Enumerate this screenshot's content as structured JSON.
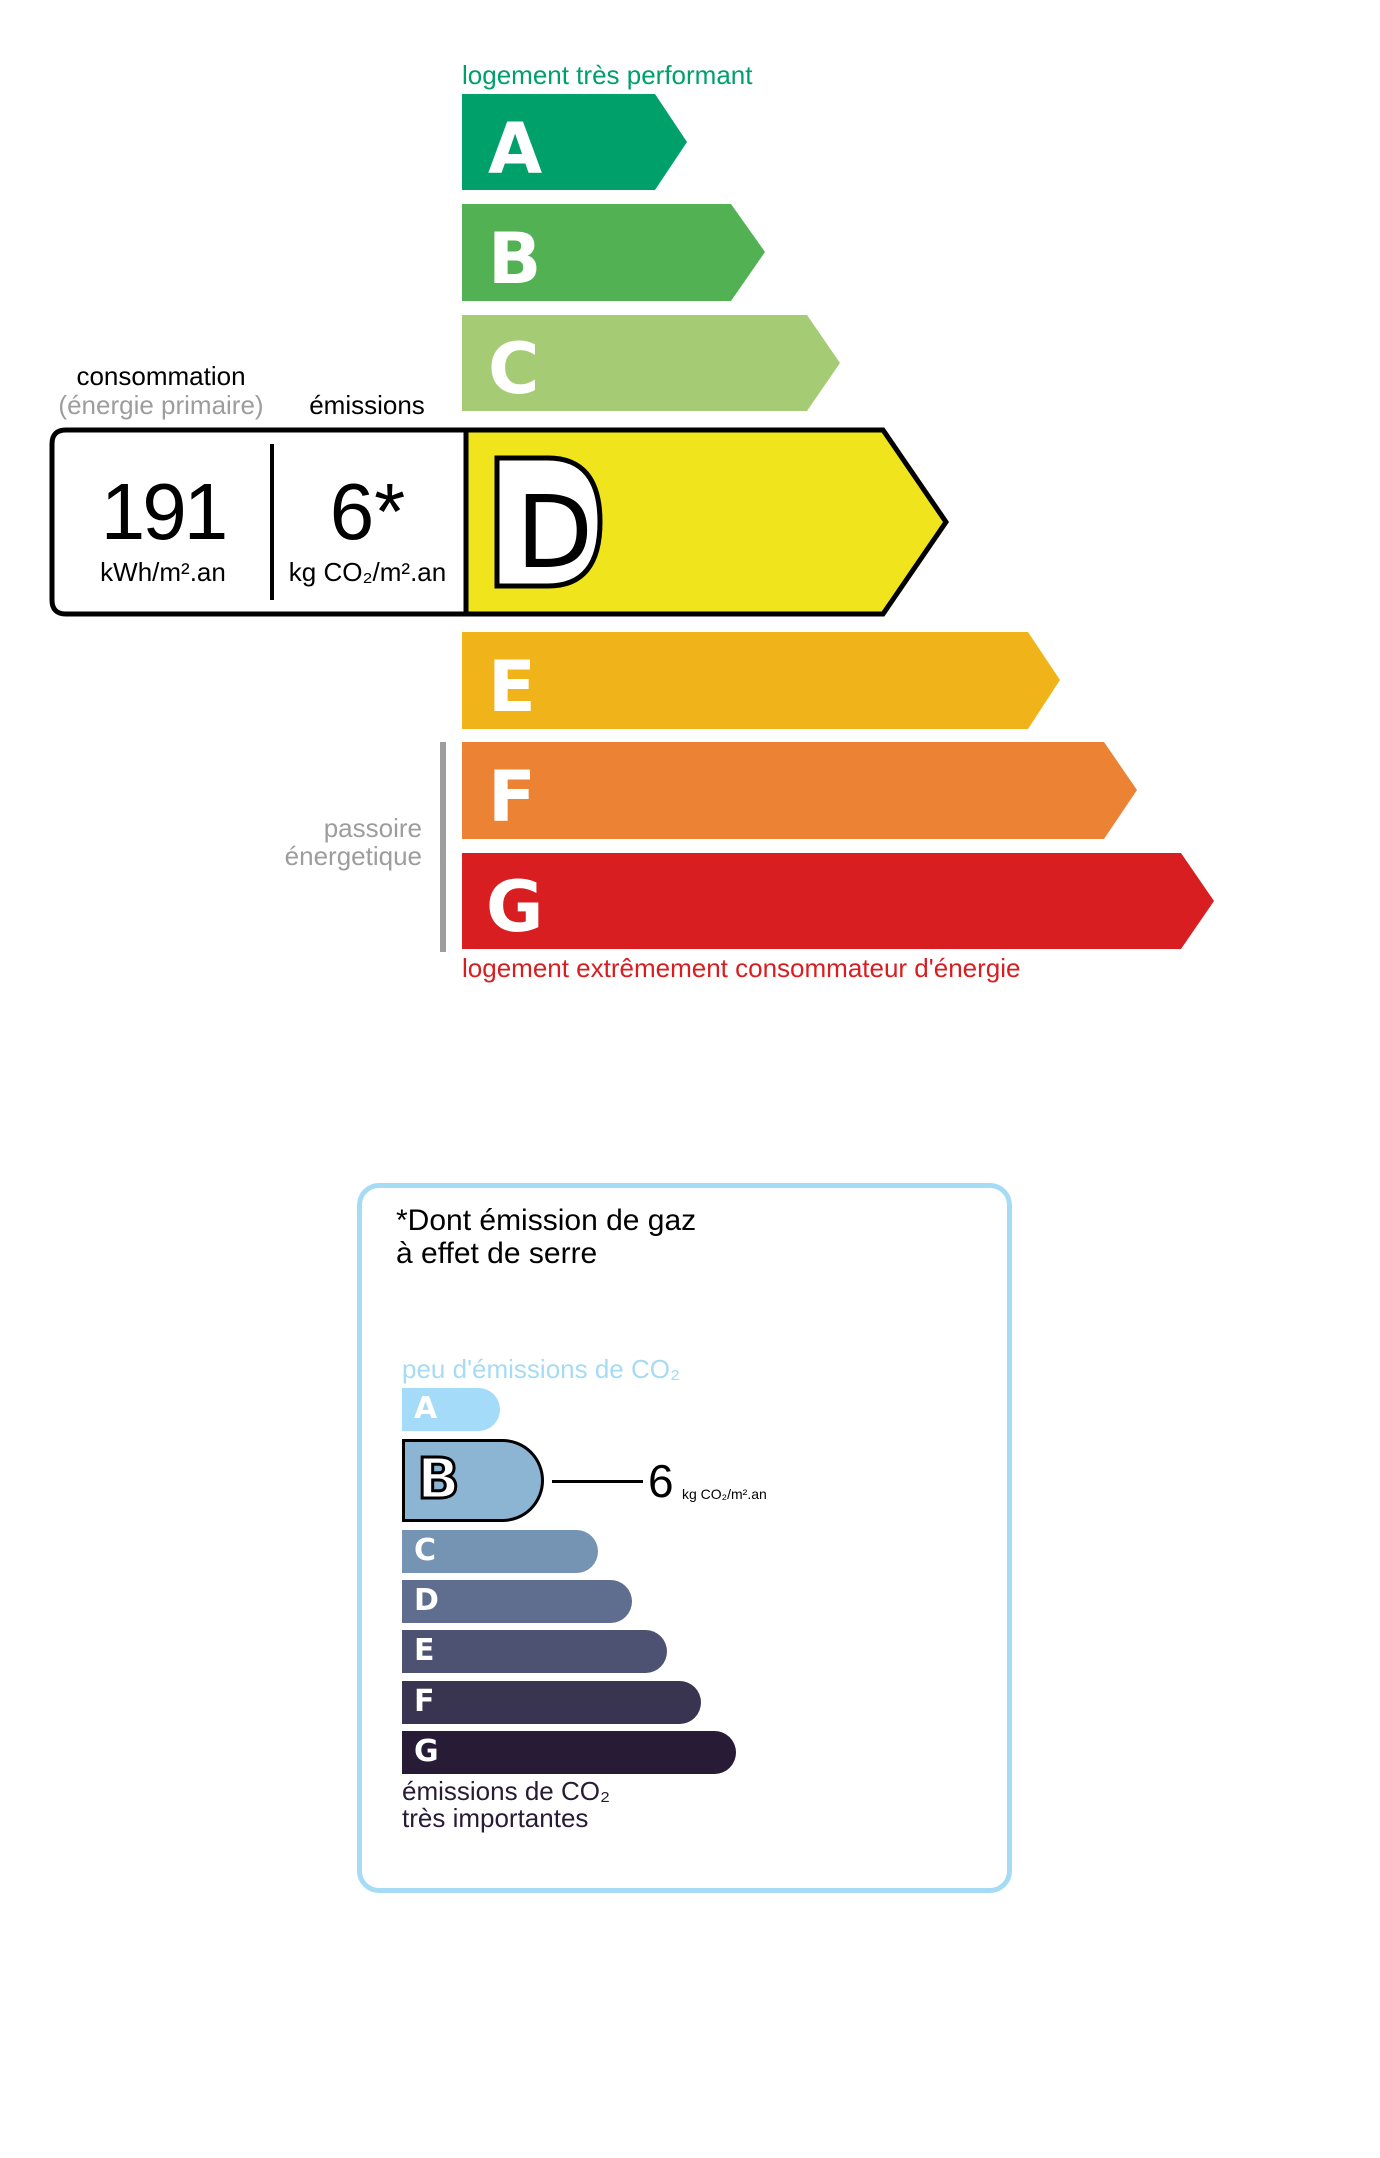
{
  "dpe": {
    "top_label": "logement très performant",
    "bottom_label": "logement extrêmement consommateur d'énergie",
    "passoire_label_line1": "passoire",
    "passoire_label_line2": "énergetique",
    "consommation_label": "consommation",
    "energie_primaire_label": "(énergie primaire)",
    "emissions_label": "émissions",
    "consumption_value": "191",
    "consumption_unit": "kWh/m².an",
    "emissions_value": "6*",
    "emissions_unit": "kg CO₂/m².an",
    "current_class": "D",
    "classes": [
      {
        "letter": "A",
        "color": "#00a06b"
      },
      {
        "letter": "B",
        "color": "#52b153"
      },
      {
        "letter": "C",
        "color": "#a5cc74"
      },
      {
        "letter": "D",
        "color": "#f0e51c"
      },
      {
        "letter": "E",
        "color": "#f0b41a"
      },
      {
        "letter": "F",
        "color": "#eb8234"
      },
      {
        "letter": "G",
        "color": "#d81e20"
      }
    ],
    "top_label_color": "#00a06b",
    "bottom_label_color": "#d81e20"
  },
  "ges": {
    "title_line1": "*Dont émission de gaz",
    "title_line2": "à effet de serre",
    "top_label": "peu d'émissions de CO₂",
    "bottom_label_line1": "émissions de CO₂",
    "bottom_label_line2": "très importantes",
    "current_class": "B",
    "value": "6",
    "unit": "kg CO₂/m².an",
    "border_color": "#a6dbf5",
    "classes": [
      {
        "letter": "A",
        "color": "#a4dbf8"
      },
      {
        "letter": "B",
        "color": "#8cb4d3"
      },
      {
        "letter": "C",
        "color": "#7593b3"
      },
      {
        "letter": "D",
        "color": "#5f6e8f"
      },
      {
        "letter": "E",
        "color": "#4d5272"
      },
      {
        "letter": "F",
        "color": "#393551"
      },
      {
        "letter": "G",
        "color": "#281b35"
      }
    ]
  }
}
